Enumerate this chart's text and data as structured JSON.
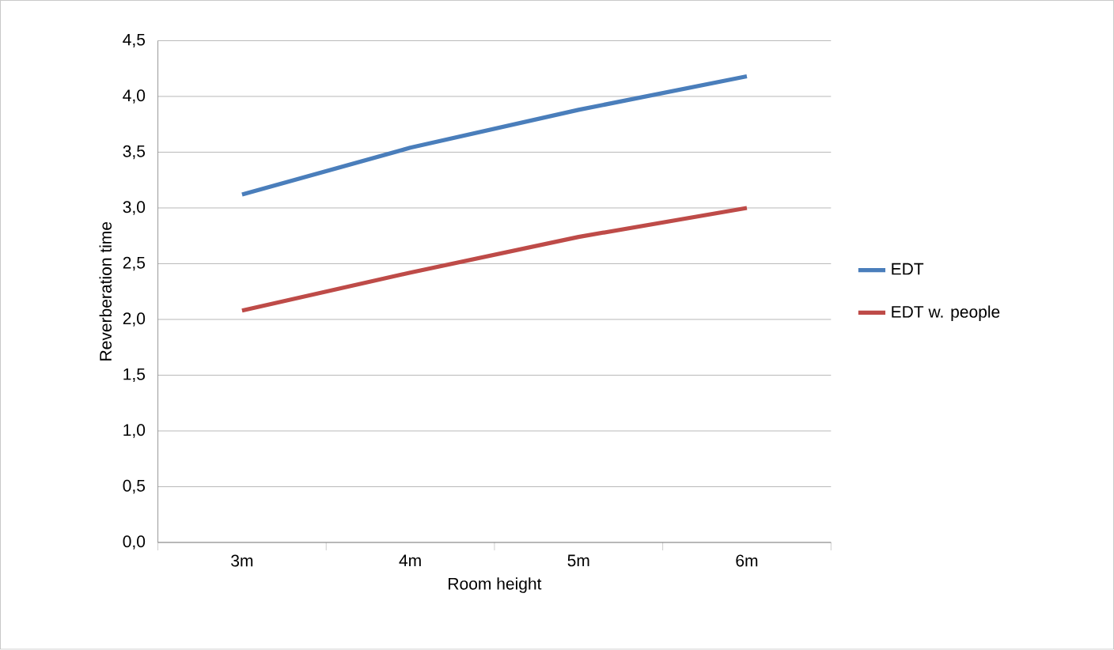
{
  "chart_data": {
    "type": "line",
    "xlabel": "Room height",
    "ylabel": "Reverberation time",
    "categories": [
      "3m",
      "4m",
      "5m",
      "6m"
    ],
    "series": [
      {
        "name": "EDT",
        "color": "#4a7ebb",
        "values": [
          3.12,
          3.54,
          3.88,
          4.18
        ]
      },
      {
        "name": "EDT w. people",
        "color": "#be4b48",
        "values": [
          2.08,
          2.42,
          2.74,
          3.0
        ]
      }
    ],
    "ylim": [
      0,
      4.5
    ],
    "yticks": [
      {
        "value": 0,
        "label": "0,0"
      },
      {
        "value": 0.5,
        "label": "0,5"
      },
      {
        "value": 1,
        "label": "1,0"
      },
      {
        "value": 1.5,
        "label": "1,5"
      },
      {
        "value": 2,
        "label": "2,0"
      },
      {
        "value": 2.5,
        "label": "2,5"
      },
      {
        "value": 3,
        "label": "3,0"
      },
      {
        "value": 3.5,
        "label": "3,5"
      },
      {
        "value": 4,
        "label": "4,0"
      },
      {
        "value": 4.5,
        "label": "4,5"
      }
    ],
    "grid": "y",
    "legend": "right",
    "marker": "none",
    "line_style": "solid"
  }
}
